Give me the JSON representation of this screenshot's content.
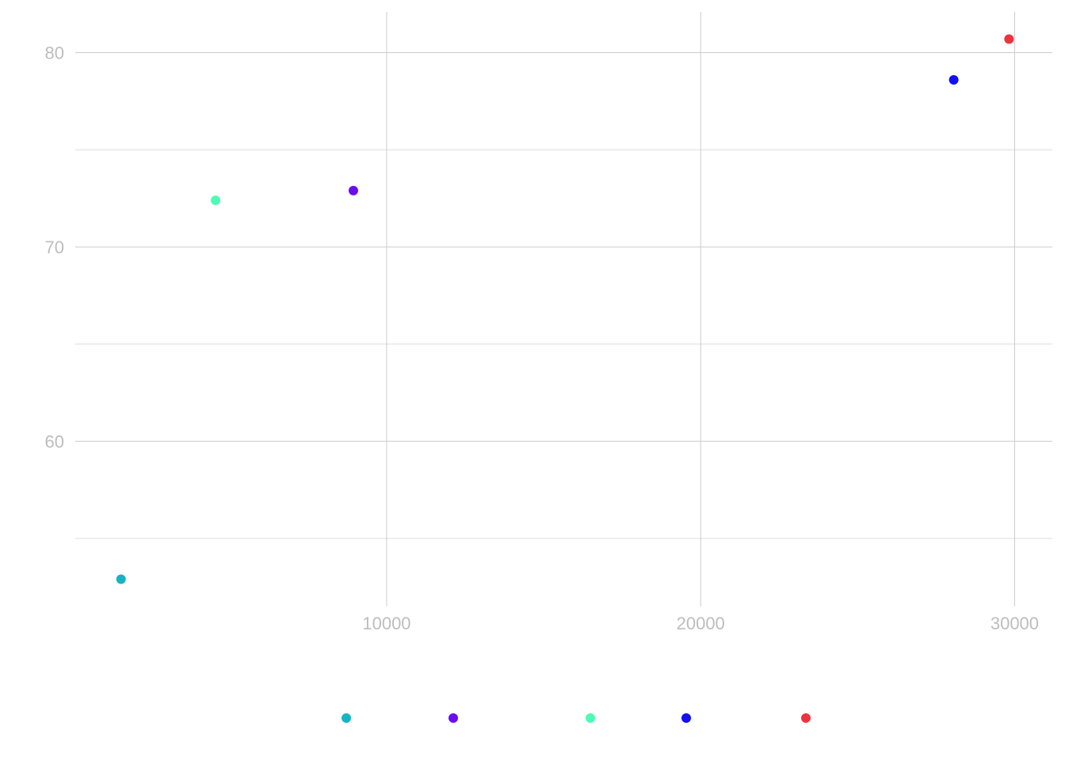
{
  "chart_data": {
    "type": "scatter",
    "title": "",
    "xlabel": "",
    "ylabel": "",
    "xlim": [
      83,
      31200
    ],
    "ylim": [
      51.5,
      82.1
    ],
    "x_ticks": [
      10000,
      20000,
      30000
    ],
    "x_tick_labels": [
      "10000",
      "20000",
      "30000"
    ],
    "y_ticks": [
      60,
      70,
      80
    ],
    "y_tick_labels": [
      "60",
      "70",
      "80"
    ],
    "y_minor_ticks": [
      55,
      65,
      75
    ],
    "grid": true,
    "legend_position": "bottom",
    "series": [
      {
        "color": "#17b3c4",
        "points": [
          {
            "x": 1540,
            "y": 52.9
          }
        ]
      },
      {
        "color": "#6a0df0",
        "points": [
          {
            "x": 8940,
            "y": 72.9
          }
        ]
      },
      {
        "color": "#4dfcb4",
        "points": [
          {
            "x": 4550,
            "y": 72.4
          }
        ]
      },
      {
        "color": "#1010f2",
        "points": [
          {
            "x": 28060,
            "y": 78.6
          }
        ]
      },
      {
        "color": "#ee3340",
        "points": [
          {
            "x": 29820,
            "y": 80.7
          }
        ]
      }
    ]
  }
}
